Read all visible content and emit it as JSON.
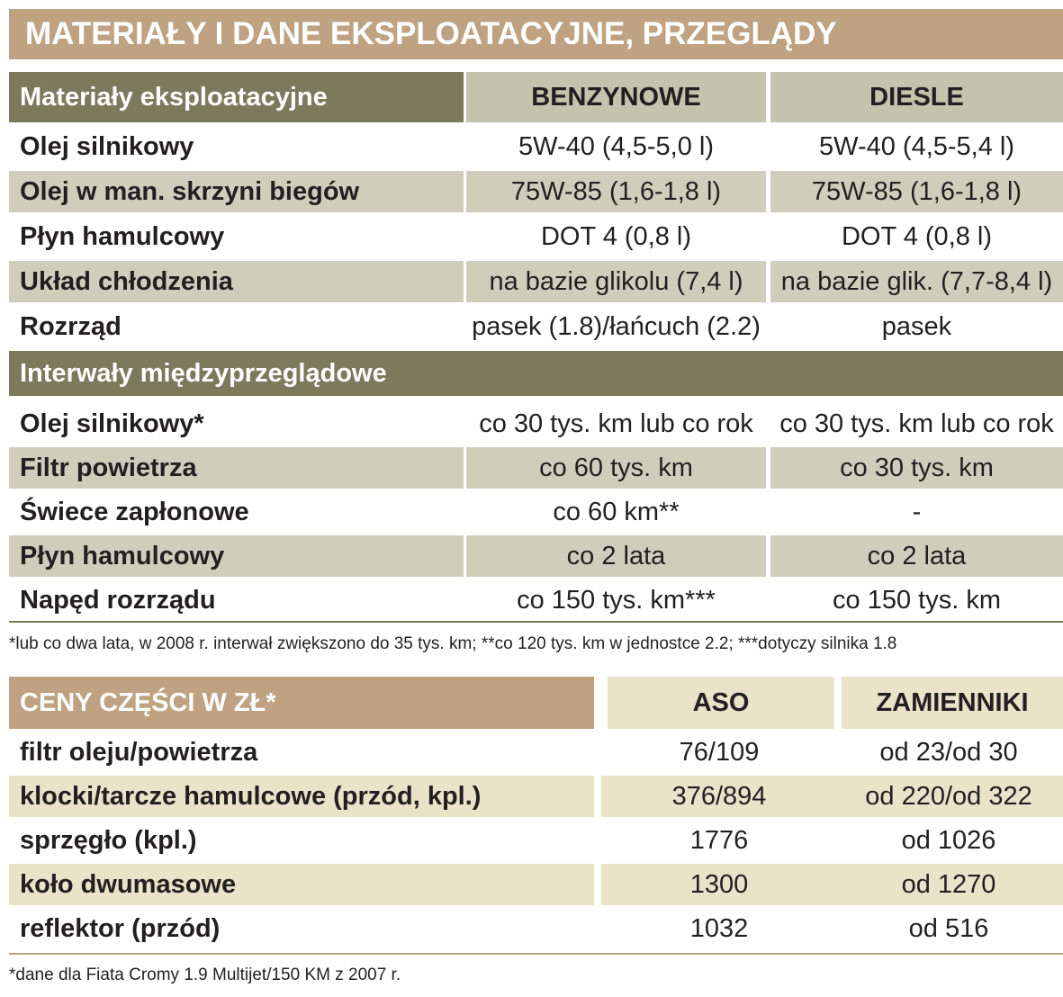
{
  "title": "MATERIAŁY I DANE EKSPLOATACYJNE, PRZEGLĄDY",
  "table1": {
    "header": {
      "label": "Materiały eksploatacyjne",
      "col2": "BENZYNOWE",
      "col3": "DIESLE"
    },
    "materials": [
      {
        "label": "Olej silnikowy",
        "benzyna": "5W-40 (4,5-5,0 l)",
        "diesel": "5W-40 (4,5-5,4 l)"
      },
      {
        "label": "Olej w man. skrzyni biegów",
        "benzyna": "75W-85 (1,6-1,8 l)",
        "diesel": "75W-85 (1,6-1,8 l)"
      },
      {
        "label": "Płyn hamulcowy",
        "benzyna": "DOT 4 (0,8 l)",
        "diesel": "DOT 4 (0,8 l)"
      },
      {
        "label": "Układ chłodzenia",
        "benzyna": "na bazie glikolu (7,4 l)",
        "diesel": "na bazie glik. (7,7-8,4 l)"
      },
      {
        "label": "Rozrząd",
        "benzyna": "pasek (1.8)/łańcuch (2.2)",
        "diesel": "pasek"
      }
    ],
    "section2": "Interwały międzyprzeglądowe",
    "intervals": [
      {
        "label": "Olej silnikowy*",
        "benzyna": "co 30 tys. km lub co rok",
        "diesel": "co 30 tys. km lub co rok"
      },
      {
        "label": "Filtr powietrza",
        "benzyna": "co 60 tys. km",
        "diesel": "co 30 tys. km"
      },
      {
        "label": "Świece zapłonowe",
        "benzyna": "co 60 km**",
        "diesel": "-"
      },
      {
        "label": "Płyn hamulcowy",
        "benzyna": "co 2 lata",
        "diesel": "co 2 lata"
      },
      {
        "label": "Napęd rozrządu",
        "benzyna": "co 150 tys. km***",
        "diesel": "co 150 tys. km"
      }
    ],
    "footnote": "*lub co dwa lata, w 2008 r. interwał zwiększono do 35 tys. km; **co 120 tys. km w jednostce 2.2; ***dotyczy silnika 1.8"
  },
  "table2": {
    "header": {
      "label": "CENY CZĘŚCI W ZŁ*",
      "col2": "ASO",
      "col3": "ZAMIENNIKI"
    },
    "rows": [
      {
        "label": "filtr oleju/powietrza",
        "aso": "76/109",
        "zam": "od 23/od 30"
      },
      {
        "label": "klocki/tarcze hamulcowe (przód, kpl.)",
        "aso": "376/894",
        "zam": "od 220/od 322"
      },
      {
        "label": "sprzęgło (kpl.)",
        "aso": "1776",
        "zam": "od 1026"
      },
      {
        "label": "koło dwumasowe",
        "aso": "1300",
        "zam": "od 1270"
      },
      {
        "label": "reflektor (przód)",
        "aso": "1032",
        "zam": "od 516"
      }
    ],
    "footnote": "*dane dla Fiata Cromy 1.9 Multijet/150 KM z 2007 r."
  }
}
